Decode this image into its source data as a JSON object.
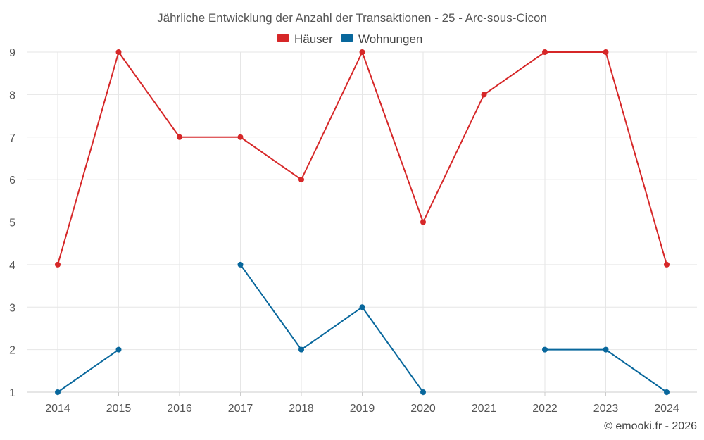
{
  "chart_data": {
    "type": "line",
    "title": "Jährliche Entwicklung der Anzahl der Transaktionen - 25 - Arc-sous-Cicon",
    "categories": [
      "2014",
      "2015",
      "2016",
      "2017",
      "2018",
      "2019",
      "2020",
      "2021",
      "2022",
      "2023",
      "2024"
    ],
    "ylim": [
      1,
      9
    ],
    "yticks": [
      1,
      2,
      3,
      4,
      5,
      6,
      7,
      8,
      9
    ],
    "grid": true,
    "legend": "top-center",
    "series": [
      {
        "name": "Häuser",
        "color": "#d62728",
        "values": [
          4,
          9,
          7,
          7,
          6,
          9,
          5,
          8,
          9,
          9,
          4
        ]
      },
      {
        "name": "Wohnungen",
        "color": "#08679c",
        "values": [
          1,
          2,
          null,
          4,
          2,
          3,
          1,
          null,
          2,
          2,
          1
        ]
      }
    ],
    "credit": "© emooki.fr - 2026"
  }
}
